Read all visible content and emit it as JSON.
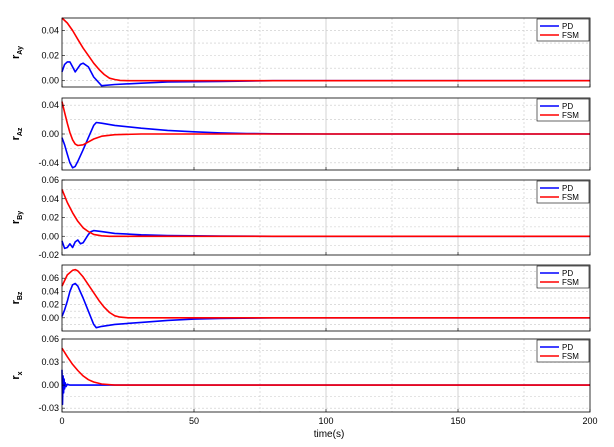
{
  "figure": {
    "xlabel": "time(s)",
    "xlim": [
      0,
      200
    ],
    "xticks": [
      0,
      50,
      100,
      150,
      200
    ]
  },
  "colors": {
    "PD": "#0000ff",
    "FSM": "#ff0000",
    "grid": "#c8c8c8"
  },
  "chart_data": [
    {
      "type": "line",
      "ylabel_main": "r",
      "ylabel_sub": "Ay",
      "ylim": [
        -0.005,
        0.05
      ],
      "yticks": [
        0.0,
        0.02,
        0.04
      ],
      "ytick_labels": [
        "0.00",
        "0.02",
        "0.04"
      ],
      "grid": true,
      "legend_position": "top-right",
      "series": [
        {
          "name": "PD",
          "x": [
            0,
            1,
            2,
            3,
            4,
            5,
            6,
            7,
            8,
            10,
            12,
            15,
            20,
            30,
            40,
            60,
            80,
            100,
            150,
            200
          ],
          "y": [
            0.007,
            0.013,
            0.015,
            0.015,
            0.011,
            0.007,
            0.01,
            0.013,
            0.014,
            0.011,
            0.003,
            -0.004,
            -0.003,
            -0.002,
            -0.001,
            -0.0005,
            0,
            0,
            0,
            0
          ]
        },
        {
          "name": "FSM",
          "x": [
            0,
            2,
            4,
            6,
            8,
            10,
            12,
            14,
            16,
            18,
            20,
            22,
            25,
            30,
            40,
            60,
            80,
            100,
            150,
            200
          ],
          "y": [
            0.05,
            0.046,
            0.04,
            0.033,
            0.026,
            0.02,
            0.014,
            0.009,
            0.005,
            0.002,
            0.001,
            0.0003,
            0,
            0,
            0,
            0,
            0,
            0,
            0,
            0
          ]
        }
      ]
    },
    {
      "type": "line",
      "ylabel_main": "r",
      "ylabel_sub": "Az",
      "ylim": [
        -0.05,
        0.05
      ],
      "yticks": [
        -0.04,
        0.0,
        0.04
      ],
      "ytick_labels": [
        "-0.04",
        "0.00",
        "0.04"
      ],
      "grid": true,
      "legend_position": "top-right",
      "series": [
        {
          "name": "PD",
          "x": [
            0,
            1,
            2,
            3,
            4,
            5,
            6,
            8,
            10,
            12,
            13,
            15,
            20,
            30,
            40,
            50,
            60,
            70,
            80,
            100,
            150,
            200
          ],
          "y": [
            -0.005,
            -0.015,
            -0.028,
            -0.04,
            -0.047,
            -0.045,
            -0.038,
            -0.022,
            -0.005,
            0.012,
            0.016,
            0.015,
            0.012,
            0.008,
            0.005,
            0.003,
            0.0015,
            0.0007,
            0.0003,
            0,
            0,
            0
          ]
        },
        {
          "name": "FSM",
          "x": [
            0,
            1,
            2,
            3,
            4,
            5,
            6,
            8,
            10,
            12,
            15,
            20,
            30,
            50,
            100,
            150,
            200
          ],
          "y": [
            0.045,
            0.03,
            0.015,
            0.002,
            -0.008,
            -0.014,
            -0.016,
            -0.015,
            -0.011,
            -0.007,
            -0.003,
            -0.001,
            0,
            0,
            0,
            0,
            0
          ]
        }
      ]
    },
    {
      "type": "line",
      "ylabel_main": "r",
      "ylabel_sub": "By",
      "ylim": [
        -0.02,
        0.06
      ],
      "yticks": [
        -0.02,
        0.0,
        0.02,
        0.04,
        0.06
      ],
      "ytick_labels": [
        "-0.02",
        "0.00",
        "0.02",
        "0.04",
        "0.06"
      ],
      "grid": true,
      "legend_position": "top-right",
      "series": [
        {
          "name": "PD",
          "x": [
            0,
            1,
            2,
            3,
            4,
            5,
            6,
            7,
            8,
            10,
            11,
            12,
            15,
            20,
            30,
            40,
            60,
            80,
            100,
            200
          ],
          "y": [
            -0.005,
            -0.013,
            -0.012,
            -0.008,
            -0.012,
            -0.006,
            -0.004,
            -0.008,
            -0.007,
            0.002,
            0.005,
            0.006,
            0.005,
            0.003,
            0.0015,
            0.0008,
            0.0002,
            0,
            0,
            0
          ]
        },
        {
          "name": "FSM",
          "x": [
            0,
            2,
            4,
            6,
            8,
            10,
            12,
            15,
            18,
            20,
            25,
            30,
            40,
            60,
            100,
            200
          ],
          "y": [
            0.05,
            0.036,
            0.025,
            0.016,
            0.009,
            0.005,
            0.002,
            0.0005,
            0,
            0,
            0,
            0,
            0,
            0,
            0,
            0
          ]
        }
      ]
    },
    {
      "type": "line",
      "ylabel_main": "r",
      "ylabel_sub": "Bz",
      "ylim": [
        -0.02,
        0.08
      ],
      "yticks": [
        0.0,
        0.02,
        0.04,
        0.06
      ],
      "ytick_labels": [
        "0.00",
        "0.02",
        "0.04",
        "0.06"
      ],
      "grid": true,
      "legend_position": "top-right",
      "series": [
        {
          "name": "PD",
          "x": [
            0,
            1,
            2,
            3,
            4,
            5,
            6,
            8,
            10,
            12,
            13,
            15,
            20,
            30,
            40,
            50,
            60,
            80,
            100,
            200
          ],
          "y": [
            0.002,
            0.012,
            0.025,
            0.04,
            0.05,
            0.052,
            0.048,
            0.03,
            0.01,
            -0.01,
            -0.015,
            -0.013,
            -0.01,
            -0.007,
            -0.004,
            -0.002,
            -0.001,
            0,
            0,
            0
          ]
        },
        {
          "name": "FSM",
          "x": [
            0,
            2,
            4,
            5,
            6,
            8,
            10,
            12,
            14,
            16,
            18,
            20,
            22,
            25,
            30,
            40,
            60,
            100,
            200
          ],
          "y": [
            0.048,
            0.065,
            0.072,
            0.073,
            0.071,
            0.062,
            0.05,
            0.038,
            0.026,
            0.016,
            0.008,
            0.003,
            0.001,
            0,
            0,
            0,
            0,
            0,
            0
          ]
        }
      ]
    },
    {
      "type": "line",
      "ylabel_main": "r",
      "ylabel_sub": "x",
      "ylim": [
        -0.035,
        0.06
      ],
      "yticks": [
        -0.03,
        0.0,
        0.03,
        0.06
      ],
      "ytick_labels": [
        "-0.03",
        "0.00",
        "0.03",
        "0.06"
      ],
      "grid": true,
      "legend_position": "top-right",
      "series": [
        {
          "name": "PD",
          "x": [
            0,
            0.2,
            0.4,
            0.6,
            0.8,
            1.0,
            1.2,
            1.5,
            2,
            3,
            5,
            10,
            50,
            100,
            200
          ],
          "y": [
            0.02,
            -0.025,
            0.012,
            -0.01,
            0.008,
            -0.005,
            0.003,
            -0.002,
            0.001,
            0,
            0,
            0,
            0,
            0,
            0
          ]
        },
        {
          "name": "FSM",
          "x": [
            0,
            2,
            4,
            6,
            8,
            10,
            12,
            15,
            20,
            30,
            50,
            100,
            200
          ],
          "y": [
            0.048,
            0.037,
            0.027,
            0.019,
            0.012,
            0.007,
            0.004,
            0.0015,
            0,
            0,
            0,
            0,
            0
          ]
        }
      ]
    }
  ]
}
